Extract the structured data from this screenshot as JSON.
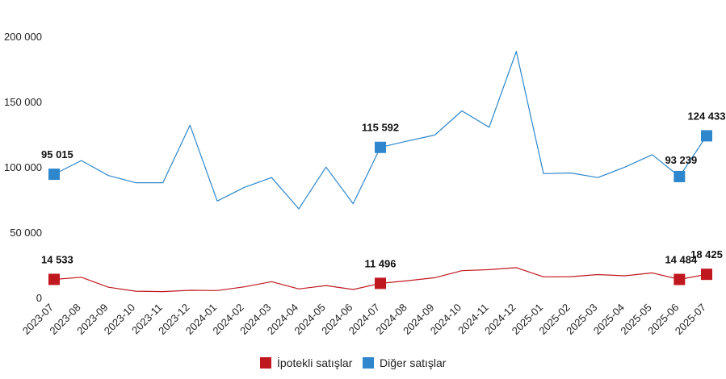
{
  "chart_data": {
    "type": "line",
    "categories": [
      "2023-07",
      "2023-08",
      "2023-09",
      "2023-10",
      "2023-11",
      "2023-12",
      "2024-01",
      "2024-02",
      "2024-03",
      "2024-04",
      "2024-05",
      "2024-06",
      "2024-07",
      "2024-08",
      "2024-09",
      "2024-10",
      "2024-11",
      "2024-12",
      "2025-01",
      "2025-02",
      "2025-03",
      "2025-04",
      "2025-05",
      "2025-06",
      "2025-07"
    ],
    "ylim": [
      0,
      200000
    ],
    "yticks": [
      0,
      50000,
      100000,
      150000,
      200000
    ],
    "ytick_labels": [
      "0",
      "50 000",
      "100 000",
      "150 000",
      "200 000"
    ],
    "grid": false,
    "legend_position": "bottom-center",
    "series": [
      {
        "name": "İpotekli satışlar",
        "color": "#C0181F",
        "values": [
          14533,
          16200,
          8500,
          5500,
          5200,
          6200,
          6000,
          8800,
          12800,
          7200,
          9800,
          6800,
          11496,
          13500,
          15800,
          21200,
          22000,
          23500,
          16500,
          16600,
          18200,
          17300,
          19500,
          14484,
          18425
        ],
        "labels": [
          {
            "index": 0,
            "text": "14 533"
          },
          {
            "index": 12,
            "text": "11 496"
          },
          {
            "index": 23,
            "text": "14 484"
          },
          {
            "index": 24,
            "text": "18 425"
          }
        ]
      },
      {
        "name": "Diğer satışlar",
        "color": "#2E87CC",
        "values": [
          95015,
          105500,
          94000,
          88500,
          88500,
          132500,
          74500,
          85000,
          92500,
          68500,
          100500,
          72500,
          115592,
          120500,
          125000,
          143500,
          131000,
          189000,
          95500,
          96000,
          92500,
          100500,
          110000,
          93239,
          124433
        ],
        "labels": [
          {
            "index": 0,
            "text": "95 015"
          },
          {
            "index": 12,
            "text": "115 592"
          },
          {
            "index": 23,
            "text": "93 239"
          },
          {
            "index": 24,
            "text": "124 433"
          }
        ]
      }
    ]
  }
}
